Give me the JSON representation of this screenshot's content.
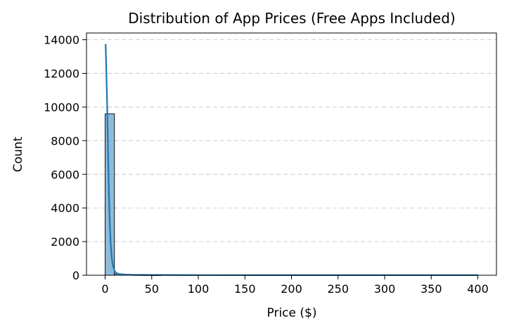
{
  "chart_data": {
    "type": "bar",
    "title": "Distribution of App Prices (Free Apps Included)",
    "xlabel": "Price ($)",
    "ylabel": "Count",
    "xlim": [
      -20,
      420
    ],
    "ylim": [
      0,
      14400
    ],
    "xticks": [
      0,
      50,
      100,
      150,
      200,
      250,
      300,
      350,
      400
    ],
    "yticks": [
      0,
      2000,
      4000,
      6000,
      8000,
      10000,
      12000,
      14000
    ],
    "grid": "y-dashed",
    "bar_color": "#1f77b4",
    "bins": [
      {
        "x0": 0,
        "x1": 10,
        "count": 9600
      },
      {
        "x0": 10,
        "x1": 20,
        "count": 75
      },
      {
        "x0": 20,
        "x1": 30,
        "count": 25
      },
      {
        "x0": 30,
        "x1": 40,
        "count": 15
      },
      {
        "x0": 40,
        "x1": 50,
        "count": 10
      },
      {
        "x0": 50,
        "x1": 60,
        "count": 5
      },
      {
        "x0": 390,
        "x1": 400,
        "count": 12
      }
    ],
    "kde": {
      "color": "#1f77b4",
      "x": [
        0.5,
        1,
        2,
        3,
        4,
        5,
        6,
        7,
        8,
        10,
        12,
        15,
        20,
        30,
        50,
        100,
        200,
        300,
        400
      ],
      "y": [
        13750,
        12800,
        10500,
        7600,
        5000,
        3100,
        1900,
        1100,
        650,
        260,
        130,
        70,
        40,
        25,
        15,
        8,
        5,
        4,
        3
      ]
    }
  }
}
